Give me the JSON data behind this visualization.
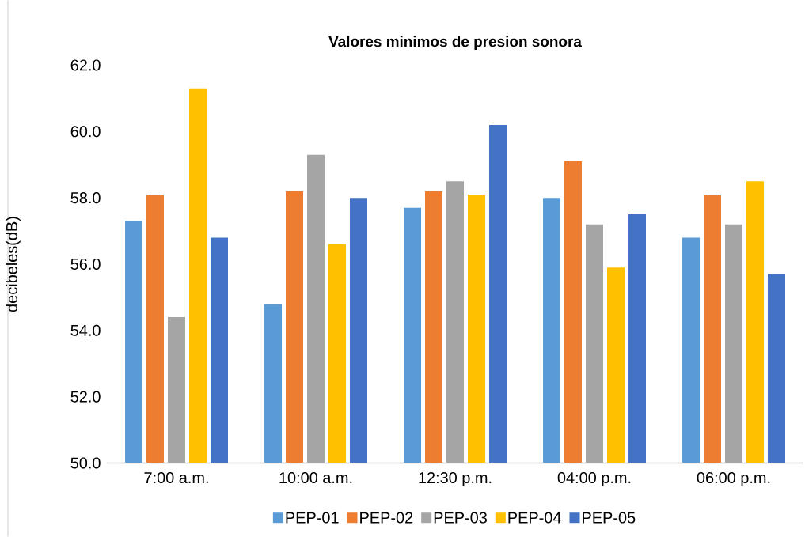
{
  "chart_data": {
    "type": "bar",
    "title": "Valores minimos de presion sonora",
    "ylabel": "decibeles(dB)",
    "categories": [
      "7:00 a.m.",
      "10:00 a.m.",
      "12:30 p.m.",
      "04:00 p.m.",
      "06:00 p.m."
    ],
    "series": [
      {
        "name": "PEP-01",
        "color": "#5b9bd5",
        "values": [
          57.3,
          54.8,
          57.7,
          58.0,
          56.8
        ]
      },
      {
        "name": "PEP-02",
        "color": "#ed7d31",
        "values": [
          58.1,
          58.2,
          58.2,
          59.1,
          58.1
        ]
      },
      {
        "name": "PEP-03",
        "color": "#a5a5a5",
        "values": [
          54.4,
          59.3,
          58.5,
          57.2,
          57.2
        ]
      },
      {
        "name": "PEP-04",
        "color": "#ffc000",
        "values": [
          61.3,
          56.6,
          58.1,
          55.9,
          58.5
        ]
      },
      {
        "name": "PEP-05",
        "color": "#4472c4",
        "values": [
          56.8,
          58.0,
          60.2,
          57.5,
          55.7
        ]
      }
    ],
    "ylim": [
      50,
      62
    ],
    "yticks": [
      {
        "value": 50,
        "label": "50.0"
      },
      {
        "value": 52,
        "label": "52.0"
      },
      {
        "value": 54,
        "label": "54.0"
      },
      {
        "value": 56,
        "label": "56.0"
      },
      {
        "value": 58,
        "label": "58.0"
      },
      {
        "value": 60,
        "label": "60.0"
      },
      {
        "value": 62,
        "label": "62.0"
      }
    ],
    "grid": false,
    "legend": "bottom"
  }
}
